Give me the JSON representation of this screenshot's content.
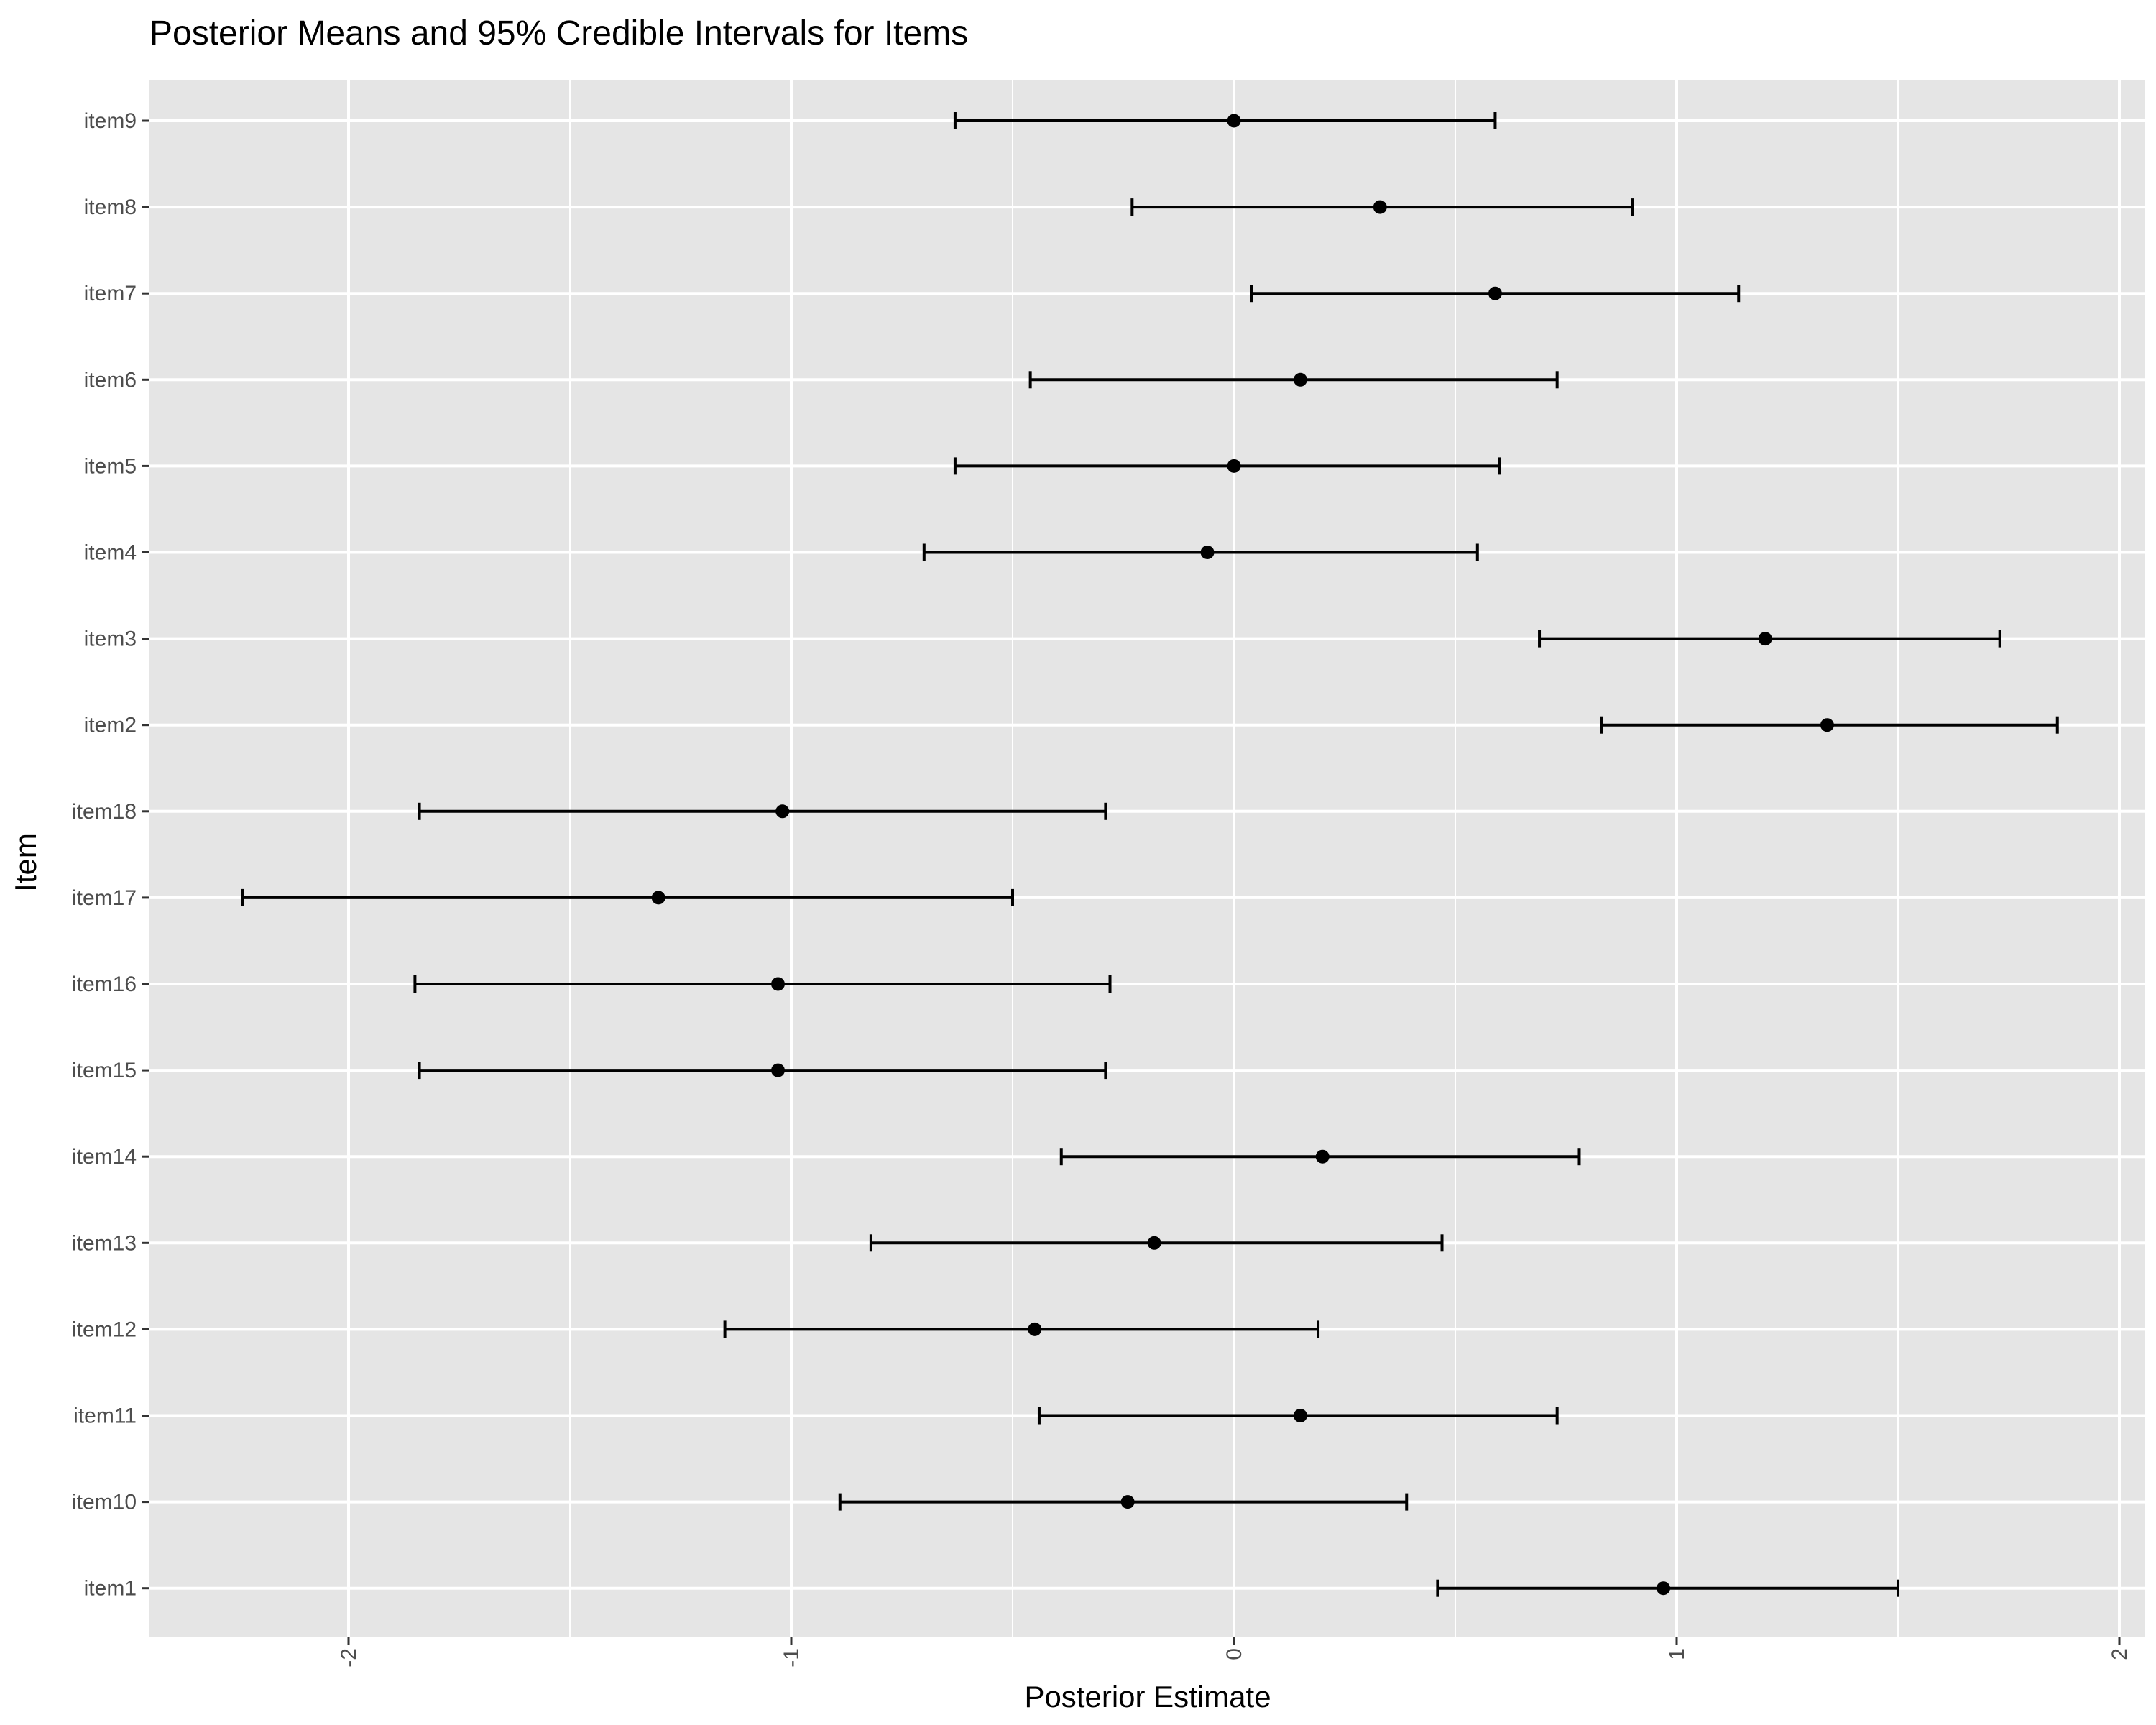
{
  "chart_data": {
    "type": "errorbar",
    "title": "Posterior Means and 95% Credible Intervals for Items",
    "xlabel": "Posterior Estimate",
    "ylabel": "Item",
    "xlim": [
      -2.45,
      2.05
    ],
    "x_ticks": [
      -2,
      -1,
      0,
      1,
      2
    ],
    "x_tick_labels": [
      "-2",
      "-1",
      "0",
      "1",
      "2"
    ],
    "grid": true,
    "background": "#e5e5e5",
    "grid_color": "#ffffff",
    "mark_color": "#000000",
    "categories": [
      "item1",
      "item10",
      "item11",
      "item12",
      "item13",
      "item14",
      "item15",
      "item16",
      "item17",
      "item18",
      "item2",
      "item3",
      "item4",
      "item5",
      "item6",
      "item7",
      "item8",
      "item9"
    ],
    "means": [
      0.97,
      -0.24,
      0.15,
      -0.45,
      -0.18,
      0.2,
      -1.03,
      -1.03,
      -1.3,
      -1.02,
      1.34,
      1.2,
      -0.06,
      0.0,
      0.15,
      0.59,
      0.33,
      0.0
    ],
    "lower": [
      0.46,
      -0.89,
      -0.44,
      -1.15,
      -0.82,
      -0.39,
      -1.84,
      -1.85,
      -2.24,
      -1.84,
      0.83,
      0.69,
      -0.7,
      -0.63,
      -0.46,
      0.04,
      -0.23,
      -0.63
    ],
    "upper": [
      1.5,
      0.39,
      0.73,
      0.19,
      0.47,
      0.78,
      -0.29,
      -0.28,
      -0.5,
      -0.29,
      1.86,
      1.73,
      0.55,
      0.6,
      0.73,
      1.14,
      0.9,
      0.59
    ]
  }
}
